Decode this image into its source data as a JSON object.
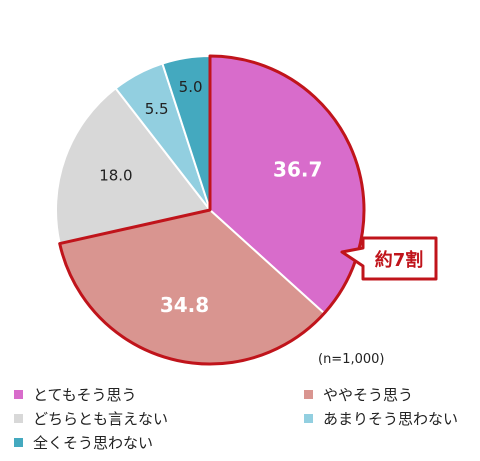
{
  "chart_data": {
    "type": "pie",
    "categories": [
      "とてもそう思う",
      "ややそう思う",
      "どちらとも言えない",
      "あまりそう思わない",
      "全くそう思わない"
    ],
    "values": [
      36.7,
      34.8,
      18.0,
      5.5,
      5.0
    ],
    "value_labels": [
      "36.7",
      "34.8",
      "18.0",
      "5.5",
      "5.0"
    ],
    "colors": [
      "#d86ccb",
      "#d99590",
      "#d8d8d8",
      "#92cfe0",
      "#44a9bf"
    ],
    "annotation": "約7割",
    "note": "(n=1,000)",
    "legend_placement": "bottom"
  }
}
